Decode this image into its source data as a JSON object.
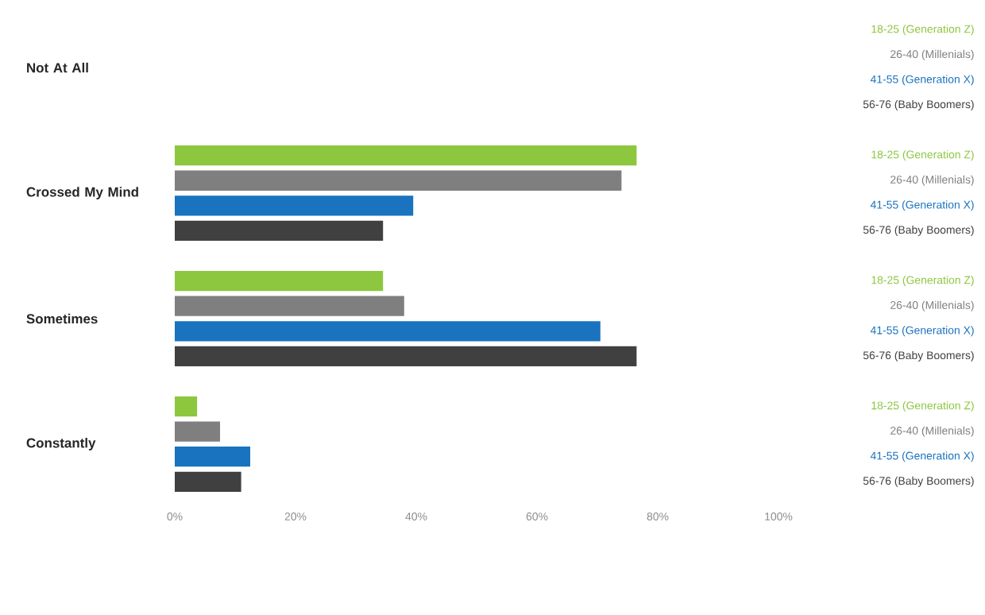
{
  "chart_data": {
    "type": "bar",
    "orientation": "horizontal",
    "categories": [
      "Not At All",
      "Crossed My Mind",
      "Sometimes",
      "Constantly"
    ],
    "series": [
      {
        "name": "18-25 (Generation Z)",
        "color": "#8dc63f",
        "values": [
          0,
          76.5,
          34.5,
          3.7
        ]
      },
      {
        "name": "26-40 (Millenials)",
        "color": "#7f7f7f",
        "values": [
          0,
          74,
          38,
          7.5
        ]
      },
      {
        "name": "41-55 (Generation X)",
        "color": "#1a73bf",
        "values": [
          0,
          39.5,
          70.5,
          12.5
        ]
      },
      {
        "name": "56-76 (Baby Boomers)",
        "color": "#404040",
        "values": [
          0,
          34.5,
          76.5,
          11
        ]
      }
    ],
    "xlim": [
      0,
      100
    ],
    "xticks": [
      {
        "value": 0,
        "label": "0%"
      },
      {
        "value": 20,
        "label": "20%"
      },
      {
        "value": 40,
        "label": "40%"
      },
      {
        "value": 60,
        "label": "60%"
      },
      {
        "value": 80,
        "label": "80%"
      },
      {
        "value": 100,
        "label": "100%"
      }
    ],
    "grid": false
  }
}
